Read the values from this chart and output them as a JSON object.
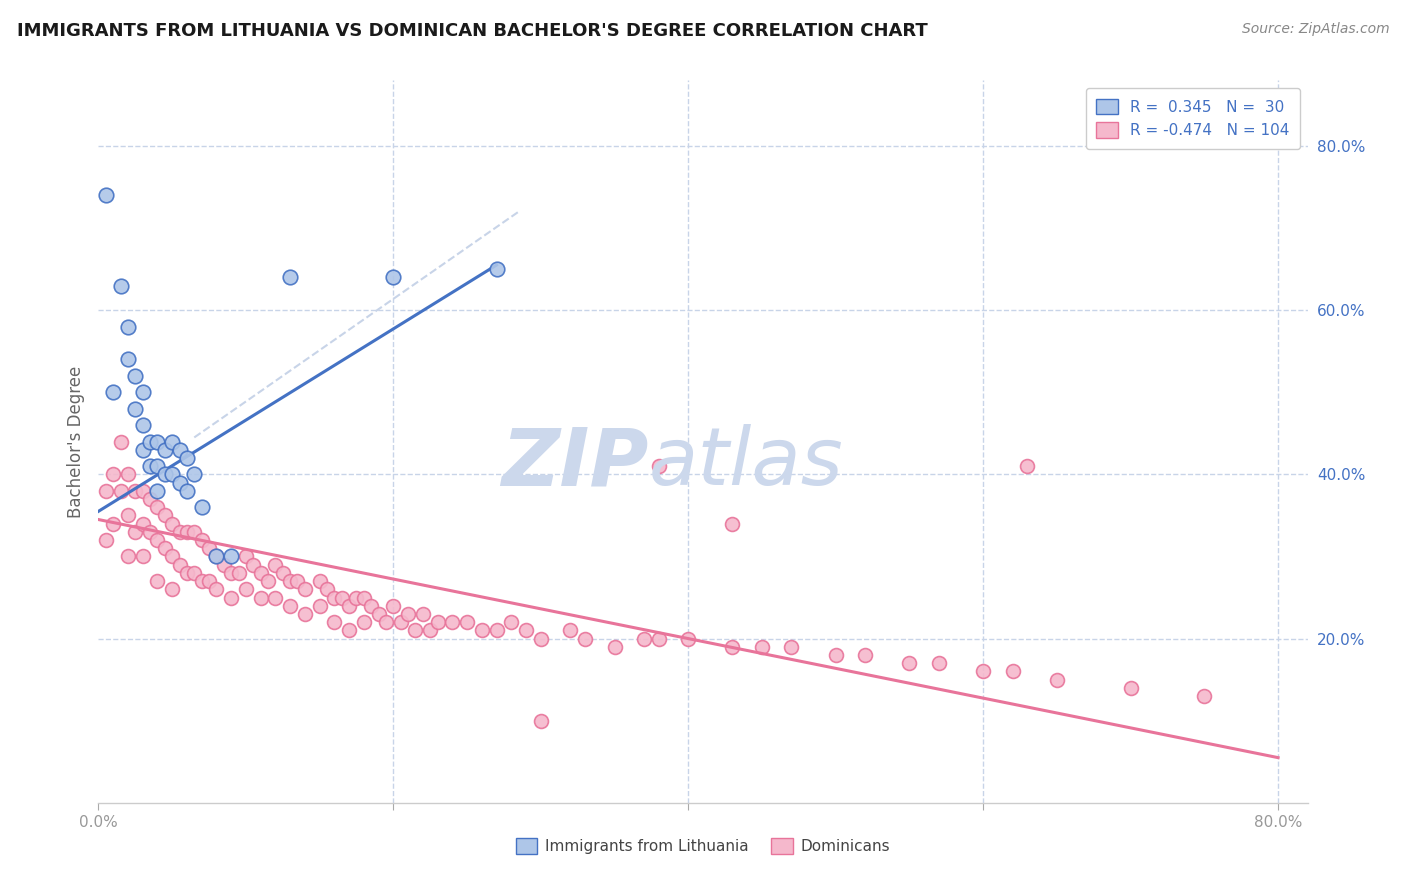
{
  "title": "IMMIGRANTS FROM LITHUANIA VS DOMINICAN BACHELOR'S DEGREE CORRELATION CHART",
  "source_text": "Source: ZipAtlas.com",
  "ylabel": "Bachelor's Degree",
  "xlim": [
    0.0,
    0.82
  ],
  "ylim": [
    0.0,
    0.88
  ],
  "ytick_vals_right": [
    0.2,
    0.4,
    0.6,
    0.8
  ],
  "blue_scatter_x": [
    0.005,
    0.01,
    0.015,
    0.02,
    0.02,
    0.025,
    0.025,
    0.03,
    0.03,
    0.03,
    0.035,
    0.035,
    0.04,
    0.04,
    0.04,
    0.045,
    0.045,
    0.05,
    0.05,
    0.055,
    0.055,
    0.06,
    0.06,
    0.065,
    0.07,
    0.08,
    0.09,
    0.13,
    0.2,
    0.27
  ],
  "blue_scatter_y": [
    0.74,
    0.5,
    0.63,
    0.58,
    0.54,
    0.52,
    0.48,
    0.5,
    0.46,
    0.43,
    0.44,
    0.41,
    0.44,
    0.41,
    0.38,
    0.43,
    0.4,
    0.44,
    0.4,
    0.43,
    0.39,
    0.42,
    0.38,
    0.4,
    0.36,
    0.3,
    0.3,
    0.64,
    0.64,
    0.65
  ],
  "pink_scatter_x": [
    0.005,
    0.005,
    0.01,
    0.01,
    0.015,
    0.015,
    0.02,
    0.02,
    0.02,
    0.025,
    0.025,
    0.03,
    0.03,
    0.03,
    0.035,
    0.035,
    0.04,
    0.04,
    0.04,
    0.045,
    0.045,
    0.05,
    0.05,
    0.05,
    0.055,
    0.055,
    0.06,
    0.06,
    0.065,
    0.065,
    0.07,
    0.07,
    0.075,
    0.075,
    0.08,
    0.08,
    0.085,
    0.09,
    0.09,
    0.095,
    0.1,
    0.1,
    0.105,
    0.11,
    0.11,
    0.115,
    0.12,
    0.12,
    0.125,
    0.13,
    0.13,
    0.135,
    0.14,
    0.14,
    0.15,
    0.15,
    0.155,
    0.16,
    0.16,
    0.165,
    0.17,
    0.17,
    0.175,
    0.18,
    0.18,
    0.185,
    0.19,
    0.195,
    0.2,
    0.205,
    0.21,
    0.215,
    0.22,
    0.225,
    0.23,
    0.24,
    0.25,
    0.26,
    0.27,
    0.28,
    0.29,
    0.3,
    0.32,
    0.33,
    0.35,
    0.37,
    0.38,
    0.4,
    0.43,
    0.45,
    0.47,
    0.5,
    0.52,
    0.55,
    0.57,
    0.6,
    0.62,
    0.65,
    0.7,
    0.75,
    0.3,
    0.38,
    0.43,
    0.63
  ],
  "pink_scatter_y": [
    0.38,
    0.32,
    0.4,
    0.34,
    0.44,
    0.38,
    0.4,
    0.35,
    0.3,
    0.38,
    0.33,
    0.38,
    0.34,
    0.3,
    0.37,
    0.33,
    0.36,
    0.32,
    0.27,
    0.35,
    0.31,
    0.34,
    0.3,
    0.26,
    0.33,
    0.29,
    0.33,
    0.28,
    0.33,
    0.28,
    0.32,
    0.27,
    0.31,
    0.27,
    0.3,
    0.26,
    0.29,
    0.28,
    0.25,
    0.28,
    0.3,
    0.26,
    0.29,
    0.28,
    0.25,
    0.27,
    0.29,
    0.25,
    0.28,
    0.27,
    0.24,
    0.27,
    0.26,
    0.23,
    0.27,
    0.24,
    0.26,
    0.25,
    0.22,
    0.25,
    0.24,
    0.21,
    0.25,
    0.25,
    0.22,
    0.24,
    0.23,
    0.22,
    0.24,
    0.22,
    0.23,
    0.21,
    0.23,
    0.21,
    0.22,
    0.22,
    0.22,
    0.21,
    0.21,
    0.22,
    0.21,
    0.2,
    0.21,
    0.2,
    0.19,
    0.2,
    0.2,
    0.2,
    0.19,
    0.19,
    0.19,
    0.18,
    0.18,
    0.17,
    0.17,
    0.16,
    0.16,
    0.15,
    0.14,
    0.13,
    0.1,
    0.41,
    0.34,
    0.41
  ],
  "blue_line_x": [
    0.0,
    0.27
  ],
  "blue_line_y": [
    0.355,
    0.655
  ],
  "pink_line_x": [
    0.0,
    0.8
  ],
  "pink_line_y": [
    0.345,
    0.055
  ],
  "dashed_line_x": [
    0.065,
    0.285
  ],
  "dashed_line_y": [
    0.445,
    0.72
  ],
  "blue_color": "#4472c4",
  "pink_color": "#e8749a",
  "blue_fill": "#aec6e8",
  "pink_fill": "#f5b8cc",
  "bg_color": "#ffffff",
  "grid_color": "#c8d4e8",
  "title_color": "#1a1a1a",
  "axis_label_color": "#666666",
  "right_tick_color": "#4472c4",
  "bottom_tick_color": "#999999"
}
